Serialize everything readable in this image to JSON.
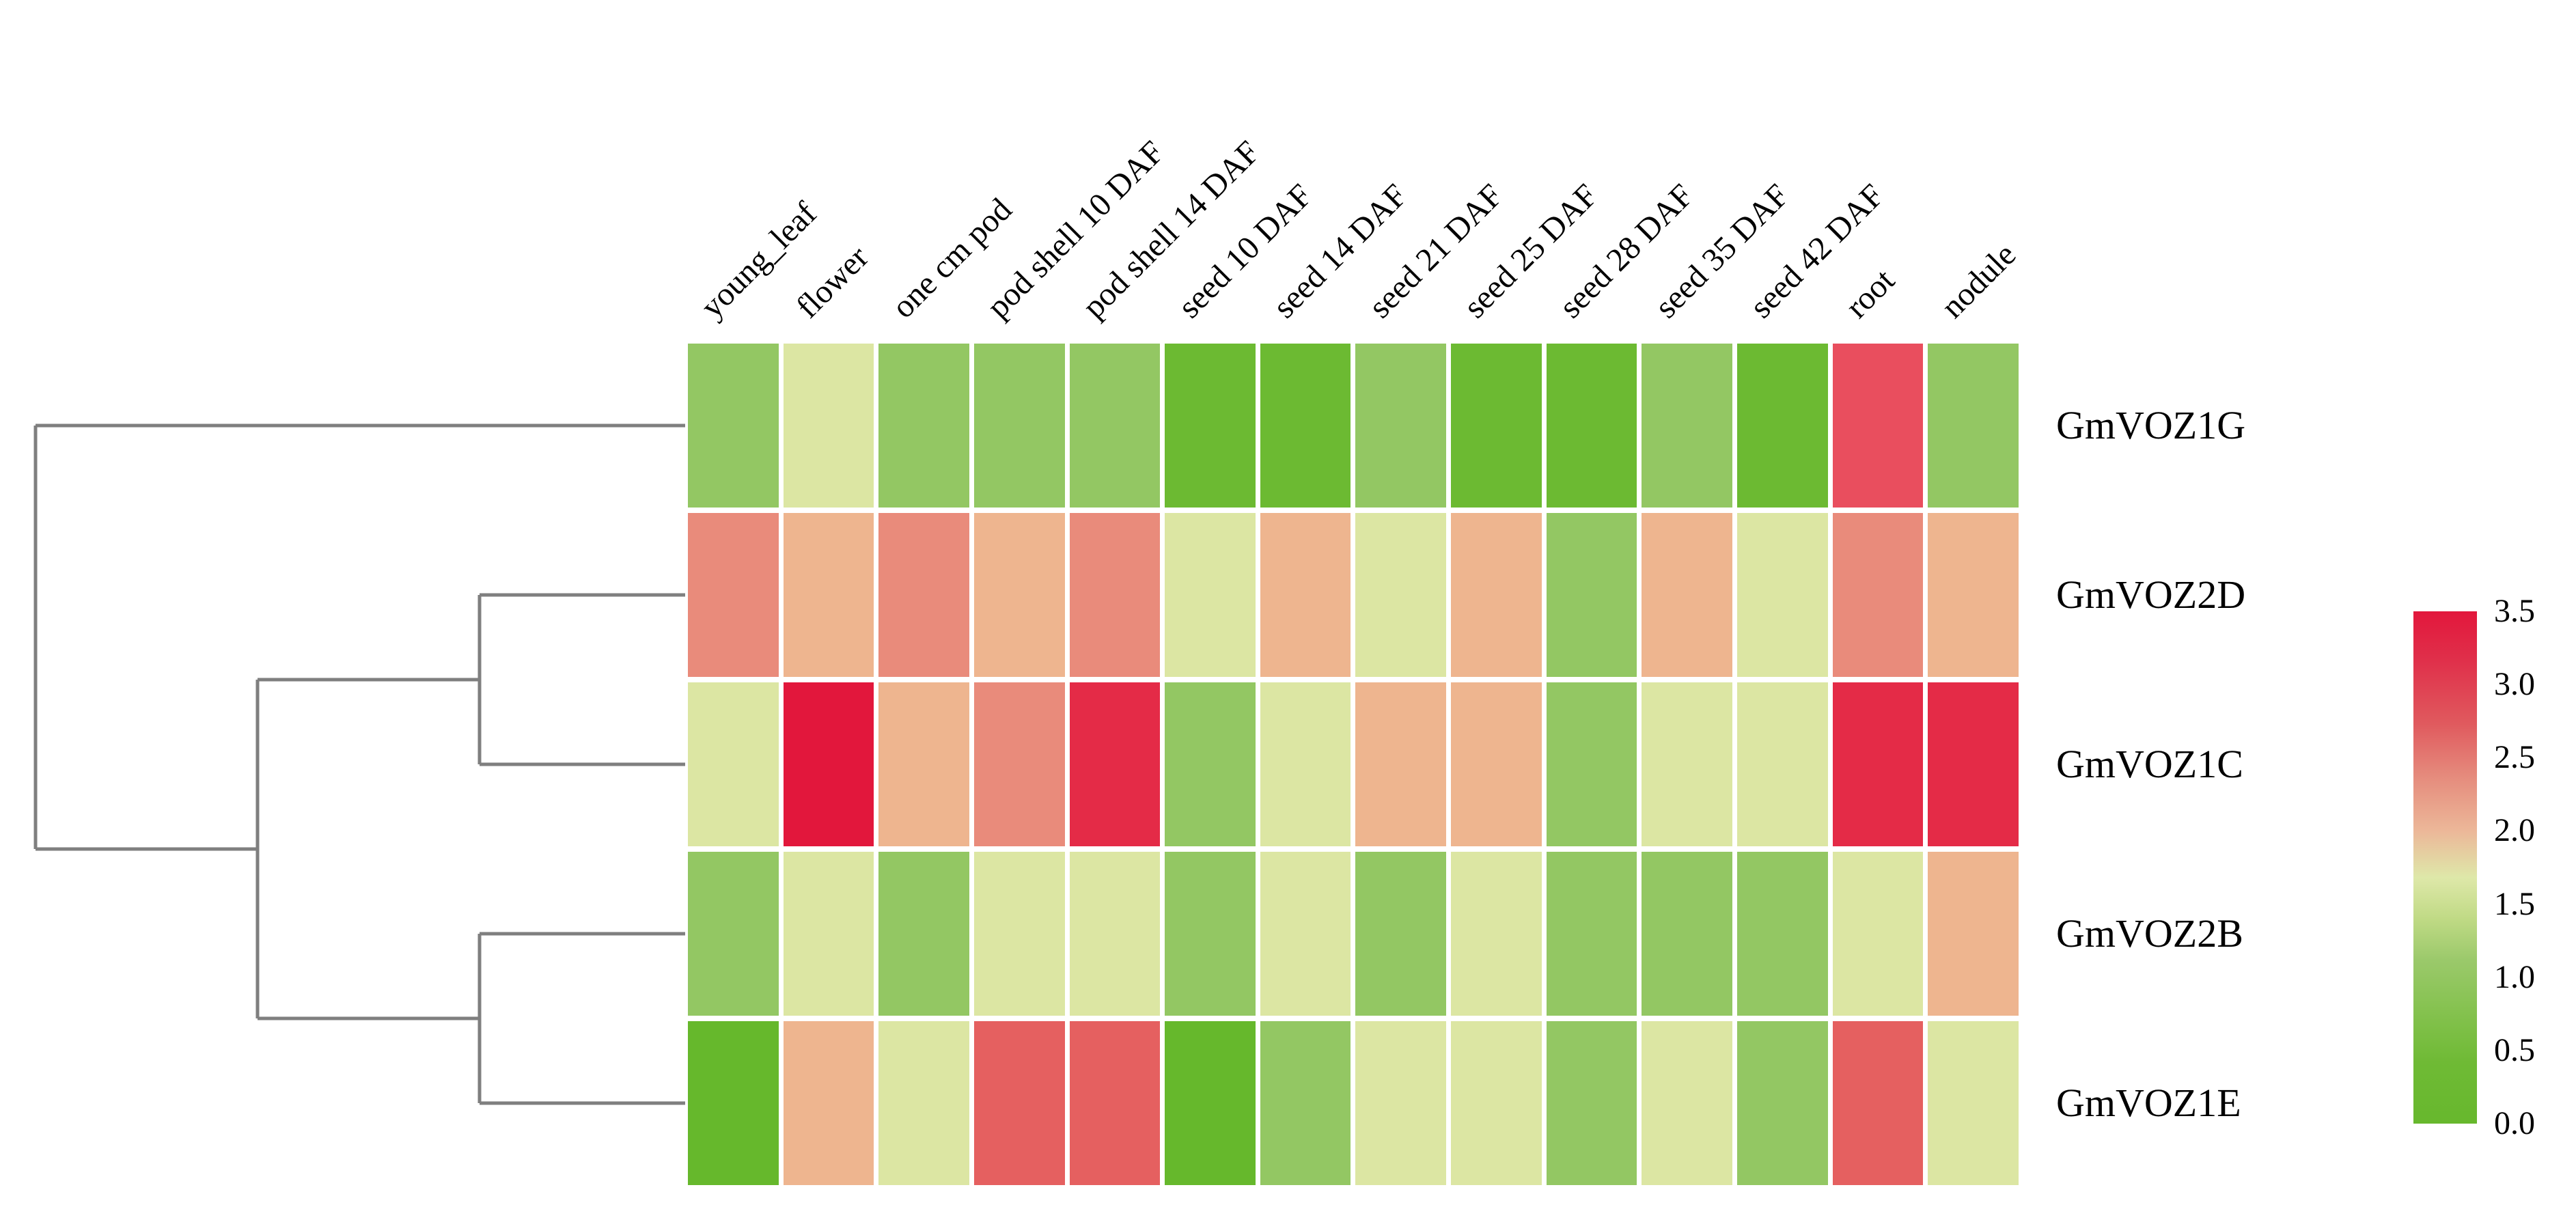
{
  "figure": {
    "background": "#ffffff",
    "description": "Expression heatmap of GmVOZ genes across soybean tissues with row dendrogram and color scale legend"
  },
  "chart_data": {
    "type": "heatmap",
    "columns": [
      "young_leaf",
      "flower",
      "one cm pod",
      "pod shell 10 DAF",
      "pod shell 14 DAF",
      "seed 10 DAF",
      "seed 14 DAF",
      "seed 21 DAF",
      "seed 25 DAF",
      "seed 28 DAF",
      "seed 35 DAF",
      "seed 42 DAF",
      "root",
      "nodule"
    ],
    "rows": [
      "GmVOZ1G",
      "GmVOZ2D",
      "GmVOZ1C",
      "GmVOZ2B",
      "GmVOZ1E"
    ],
    "values": [
      [
        1.0,
        1.5,
        1.0,
        1.0,
        1.0,
        0.4,
        0.4,
        1.0,
        0.4,
        0.4,
        1.0,
        0.4,
        2.9,
        1.0
      ],
      [
        2.4,
        2.0,
        2.4,
        2.0,
        2.4,
        1.5,
        2.0,
        1.5,
        2.0,
        1.0,
        2.0,
        1.5,
        2.4,
        2.0
      ],
      [
        1.5,
        3.4,
        2.0,
        2.4,
        3.2,
        1.0,
        1.5,
        2.0,
        2.0,
        1.0,
        1.5,
        1.5,
        3.2,
        3.2
      ],
      [
        1.0,
        1.5,
        1.0,
        1.5,
        1.5,
        1.0,
        1.5,
        1.0,
        1.5,
        1.0,
        1.0,
        1.0,
        1.5,
        2.0
      ],
      [
        0.2,
        2.0,
        1.5,
        2.7,
        2.7,
        0.2,
        1.0,
        1.5,
        1.5,
        1.0,
        1.5,
        1.0,
        2.7,
        1.5
      ]
    ],
    "cell_colors": [
      [
        "#93C763",
        "#DCE6A3",
        "#93C763",
        "#93C763",
        "#93C763",
        "#6CBA32",
        "#6CBA32",
        "#93C763",
        "#6CBA32",
        "#6CBA32",
        "#93C763",
        "#6CBA32",
        "#E94E5E",
        "#93C763"
      ],
      [
        "#E98B7B",
        "#EEB58F",
        "#E98B7B",
        "#EEB58F",
        "#E98B7B",
        "#DCE6A3",
        "#EEB58F",
        "#DCE6A3",
        "#EEB58F",
        "#93C763",
        "#EEB58F",
        "#DCE6A3",
        "#E98B7B",
        "#EEB58F"
      ],
      [
        "#DCE6A3",
        "#E2173C",
        "#EEB58F",
        "#E98B7B",
        "#E42B47",
        "#93C763",
        "#DCE6A3",
        "#EEB58F",
        "#EEB58F",
        "#93C763",
        "#DCE6A3",
        "#DCE6A3",
        "#E42B47",
        "#E42B47"
      ],
      [
        "#93C763",
        "#DCE6A3",
        "#93C763",
        "#DCE6A3",
        "#DCE6A3",
        "#93C763",
        "#DCE6A3",
        "#93C763",
        "#DCE6A3",
        "#93C763",
        "#93C763",
        "#93C763",
        "#DCE6A3",
        "#EEB58F"
      ],
      [
        "#66B82C",
        "#EEB58F",
        "#DCE6A3",
        "#E56060",
        "#E56060",
        "#66B82C",
        "#93C763",
        "#DCE6A3",
        "#DCE6A3",
        "#93C763",
        "#DCE6A3",
        "#93C763",
        "#E56060",
        "#DCE6A3"
      ]
    ],
    "color_scale": {
      "min": 0.0,
      "max": 3.5,
      "low_color": "#66B82C",
      "mid_color": "#DCE6A3",
      "high_color": "#E2173C"
    },
    "legend_ticks": [
      "3.5",
      "3.0",
      "2.5",
      "2.0",
      "1.5",
      "1.0",
      "0.5",
      "0.0"
    ],
    "dendrogram": {
      "row_order": [
        "GmVOZ1G",
        "GmVOZ2D",
        "GmVOZ1C",
        "GmVOZ2B",
        "GmVOZ1E"
      ],
      "newick": "(GmVOZ1G,((GmVOZ2D,GmVOZ1C),(GmVOZ2B,GmVOZ1E)));",
      "line_color": "#7f7f7f"
    },
    "grid": false,
    "legend_position": "right"
  }
}
